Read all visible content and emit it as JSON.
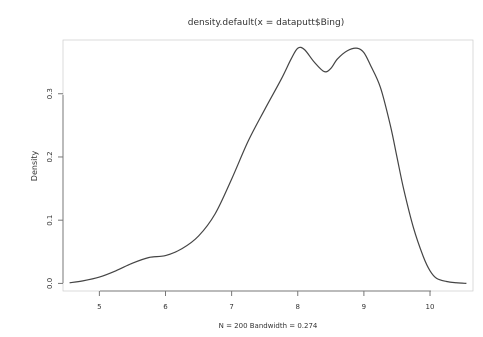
{
  "chart_data": {
    "type": "line",
    "title": "density.default(x = dataputt$Bing)",
    "xlabel": "N = 200   Bandwidth = 0.274",
    "ylabel": "Density",
    "xlim": [
      4.45,
      10.65
    ],
    "ylim": [
      -0.012,
      0.385
    ],
    "x_ticks": [
      5,
      6,
      7,
      8,
      9,
      10
    ],
    "y_ticks": [
      0.0,
      0.1,
      0.2,
      0.3
    ],
    "x_tick_labels": [
      "5",
      "6",
      "7",
      "8",
      "9",
      "10"
    ],
    "y_tick_labels": [
      "0.0",
      "0.1",
      "0.2",
      "0.3"
    ],
    "grid": false,
    "legend": "none",
    "line_color": "#444444",
    "series": [
      {
        "x": [
          4.55,
          4.75,
          5.0,
          5.25,
          5.5,
          5.75,
          6.0,
          6.25,
          6.5,
          6.75,
          7.0,
          7.25,
          7.5,
          7.75,
          7.9,
          8.0,
          8.1,
          8.25,
          8.4,
          8.5,
          8.6,
          8.75,
          8.9,
          9.0,
          9.1,
          9.25,
          9.4,
          9.5,
          9.6,
          9.75,
          9.9,
          10.0,
          10.1,
          10.25,
          10.4,
          10.55
        ],
        "y": [
          0.001,
          0.004,
          0.01,
          0.02,
          0.032,
          0.041,
          0.044,
          0.055,
          0.075,
          0.11,
          0.165,
          0.225,
          0.275,
          0.323,
          0.355,
          0.372,
          0.37,
          0.35,
          0.335,
          0.34,
          0.355,
          0.368,
          0.372,
          0.365,
          0.345,
          0.31,
          0.25,
          0.2,
          0.15,
          0.088,
          0.042,
          0.02,
          0.008,
          0.003,
          0.001,
          0.0
        ]
      }
    ]
  }
}
